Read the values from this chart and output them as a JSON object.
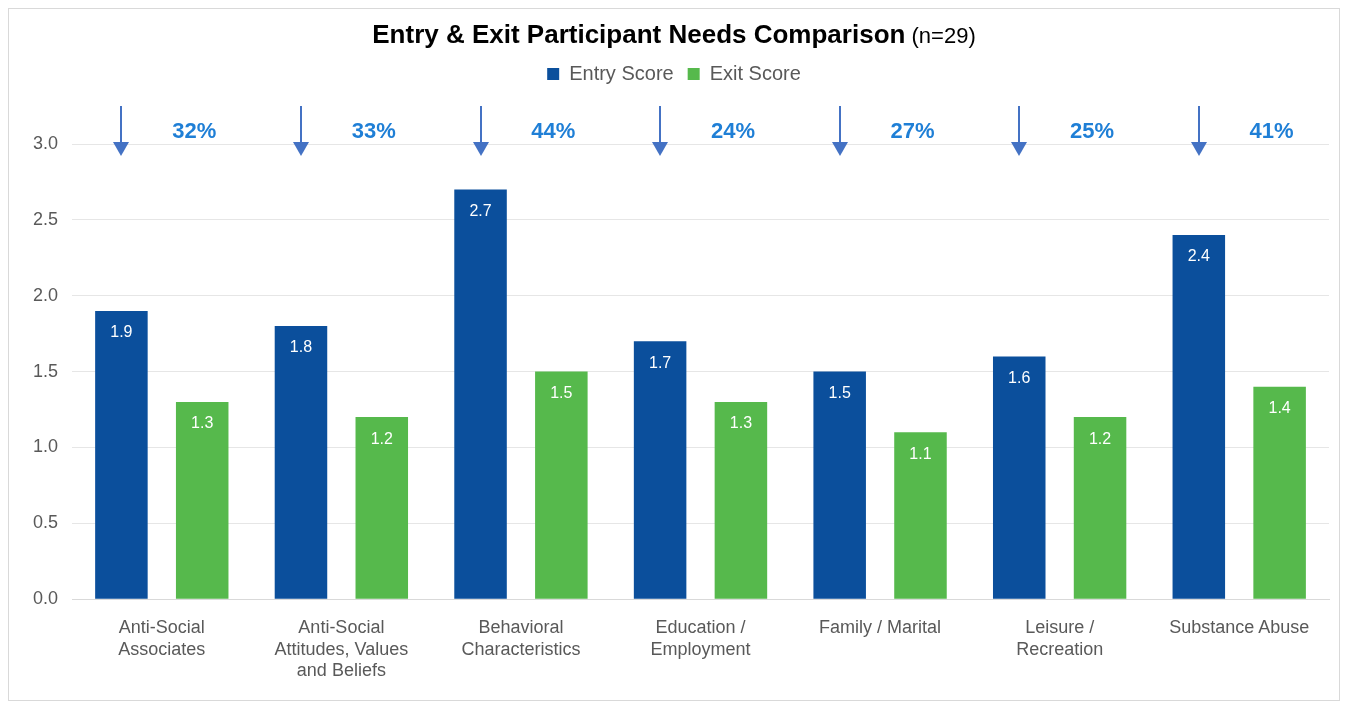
{
  "chart_data": {
    "type": "bar",
    "title": "Entry & Exit Participant Needs Comparison",
    "subtitle": "(n=29)",
    "categories": [
      "Anti-Social Associates",
      "Anti-Social Attitudes, Values and Beliefs",
      "Behavioral Characteristics",
      "Education / Employment",
      "Family / Marital",
      "Leisure / Recreation",
      "Substance Abuse"
    ],
    "series": [
      {
        "name": "Entry Score",
        "color": "#0b4f9c",
        "values": [
          1.9,
          1.8,
          2.7,
          1.7,
          1.5,
          1.6,
          2.4
        ]
      },
      {
        "name": "Exit Score",
        "color": "#56b94c",
        "values": [
          1.3,
          1.2,
          1.5,
          1.3,
          1.1,
          1.2,
          1.4
        ]
      }
    ],
    "ylim": [
      0,
      3
    ],
    "yticks": [
      {
        "value": 0,
        "label": "0.0"
      },
      {
        "value": 0.5,
        "label": "0.5"
      },
      {
        "value": 1,
        "label": "1.0"
      },
      {
        "value": 1.5,
        "label": "1.5"
      },
      {
        "value": 2,
        "label": "2.0"
      },
      {
        "value": 2.5,
        "label": "2.5"
      },
      {
        "value": 3,
        "label": "3.0"
      }
    ],
    "grid": "y",
    "legend": "top",
    "data_labels": true,
    "annotations": [
      "32%",
      "33%",
      "44%",
      "24%",
      "27%",
      "25%",
      "41%"
    ]
  }
}
